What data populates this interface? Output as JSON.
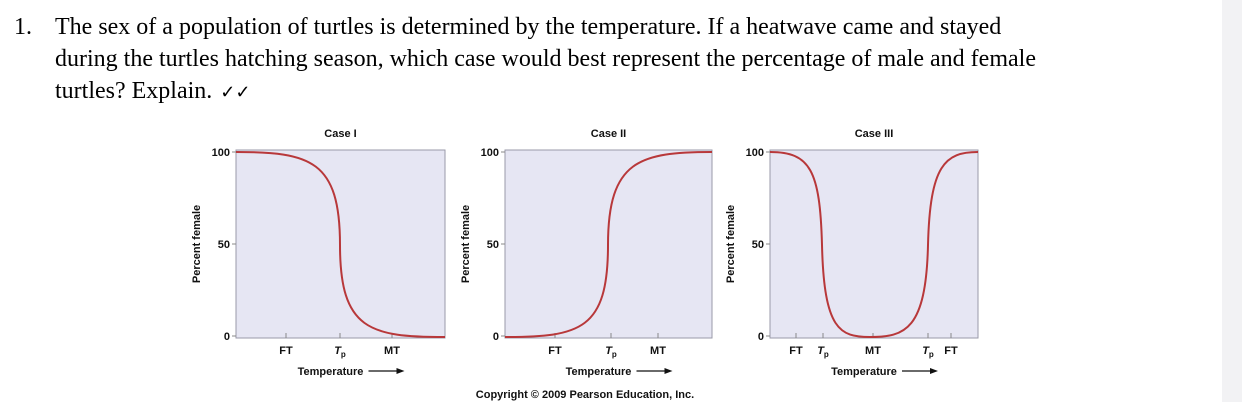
{
  "question": {
    "number": "1.",
    "lines": [
      "The sex of a population of turtles is determined by the temperature. If a heatwave came and stayed",
      "during the turtles hatching season, which case would best represent the percentage of male and female",
      "turtles? Explain."
    ],
    "marks": "✓✓"
  },
  "figure": {
    "cases": [
      {
        "title": "Case I",
        "y_label": "Percent female",
        "y_ticks": [
          "100",
          "50",
          "0"
        ],
        "x_ticks": [
          "FT",
          {
            "text": "T",
            "sub": "p"
          },
          "MT"
        ],
        "x_label": "Temperature"
      },
      {
        "title": "Case II",
        "y_label": "Percent female",
        "y_ticks": [
          "100",
          "50",
          "0"
        ],
        "x_ticks": [
          "FT",
          {
            "text": "T",
            "sub": "p"
          },
          "MT"
        ],
        "x_label": "Temperature"
      },
      {
        "title": "Case III",
        "y_label": "Percent female",
        "y_ticks": [
          "100",
          "50",
          "0"
        ],
        "x_ticks": [
          "FT",
          {
            "text": "T",
            "sub": "p"
          },
          "MT",
          {
            "text": "T",
            "sub": "p"
          },
          "FT"
        ],
        "x_label": "Temperature"
      }
    ],
    "copyright": "Copyright © 2009 Pearson Education, Inc."
  }
}
